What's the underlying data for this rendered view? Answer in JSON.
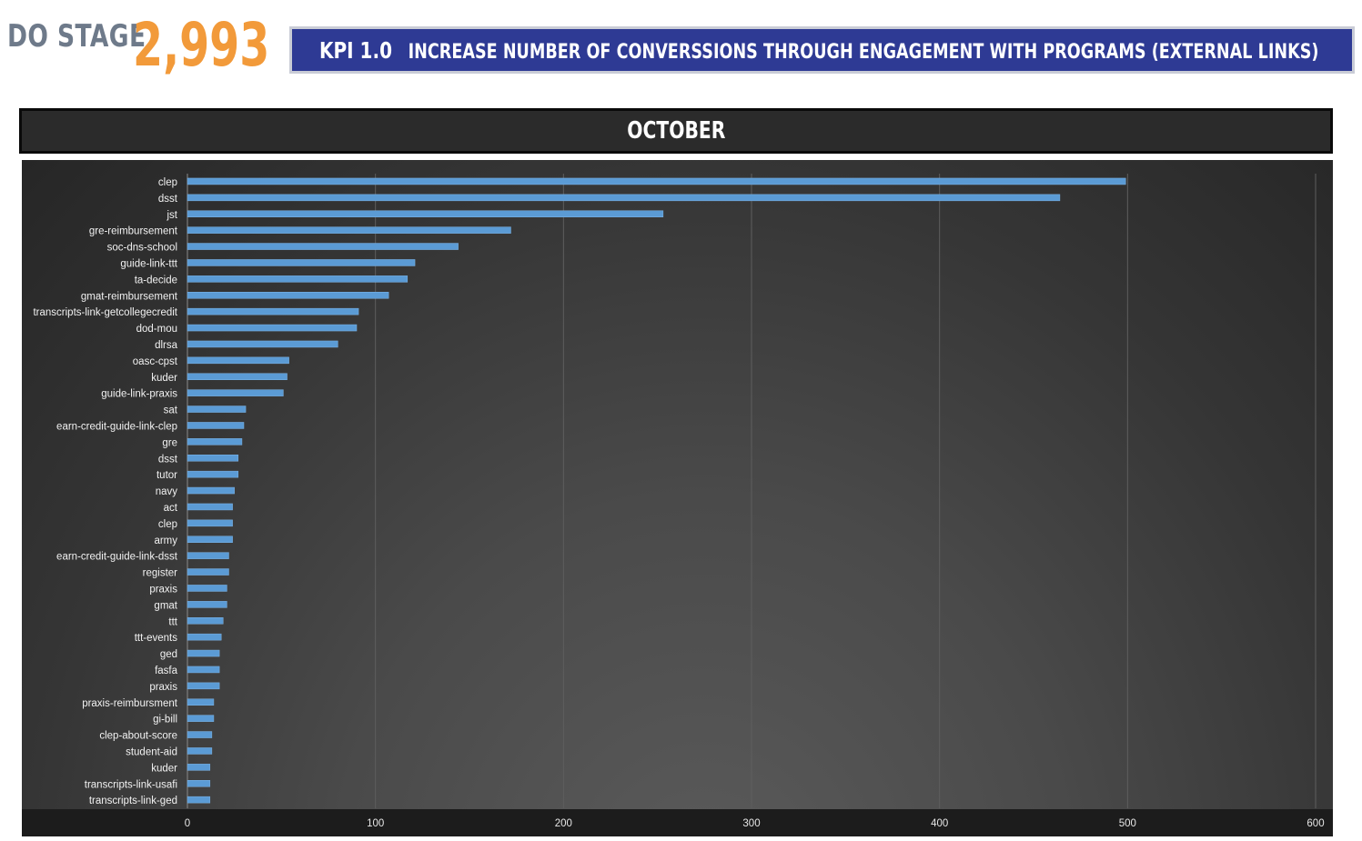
{
  "header": {
    "stage_label": "DO STAGE",
    "stage_value": "2,993",
    "kpi_id": "KPI 1.0",
    "kpi_text": "INCREASE NUMBER OF CONVERSSIONS THROUGH ENGAGEMENT WITH PROGRAMS (EXTERNAL LINKS)",
    "month": "OCTOBER"
  },
  "colors": {
    "stage_label": "#6e7a8a",
    "stage_value": "#f29a3a",
    "kpi_banner": "#2e3a94",
    "bar_fill": "#5b9bd5"
  },
  "chart_data": {
    "type": "bar",
    "orientation": "horizontal",
    "categories": [
      "clep",
      "dsst",
      "jst",
      "gre-reimbursement",
      "soc-dns-school",
      "guide-link-ttt",
      "ta-decide",
      "gmat-reimbursement",
      "transcripts-link-getcollegecredit",
      "dod-mou",
      "dlrsa",
      "oasc-cpst",
      "kuder",
      "guide-link-praxis",
      "sat",
      "earn-credit-guide-link-clep",
      "gre",
      "dsst",
      "tutor",
      "navy",
      "act",
      "clep",
      "army",
      "earn-credit-guide-link-dsst",
      "register",
      "praxis",
      "gmat",
      "ttt",
      "ttt-events",
      "ged",
      "fasfa",
      "praxis",
      "praxis-reimbursment",
      "gi-bill",
      "clep-about-score",
      "student-aid",
      "kuder",
      "transcripts-link-usafi",
      "transcripts-link-ged"
    ],
    "values": [
      499,
      464,
      253,
      172,
      144,
      121,
      117,
      107,
      91,
      90,
      80,
      54,
      53,
      51,
      31,
      30,
      29,
      27,
      27,
      25,
      24,
      24,
      24,
      22,
      22,
      21,
      21,
      19,
      18,
      17,
      17,
      17,
      14,
      14,
      13,
      13,
      12,
      12,
      12
    ],
    "xlim": [
      0,
      600
    ],
    "xticks": [
      0,
      100,
      200,
      300,
      400,
      500,
      600
    ],
    "grid": true,
    "legend": "none",
    "title": "",
    "xlabel": "",
    "ylabel": ""
  }
}
